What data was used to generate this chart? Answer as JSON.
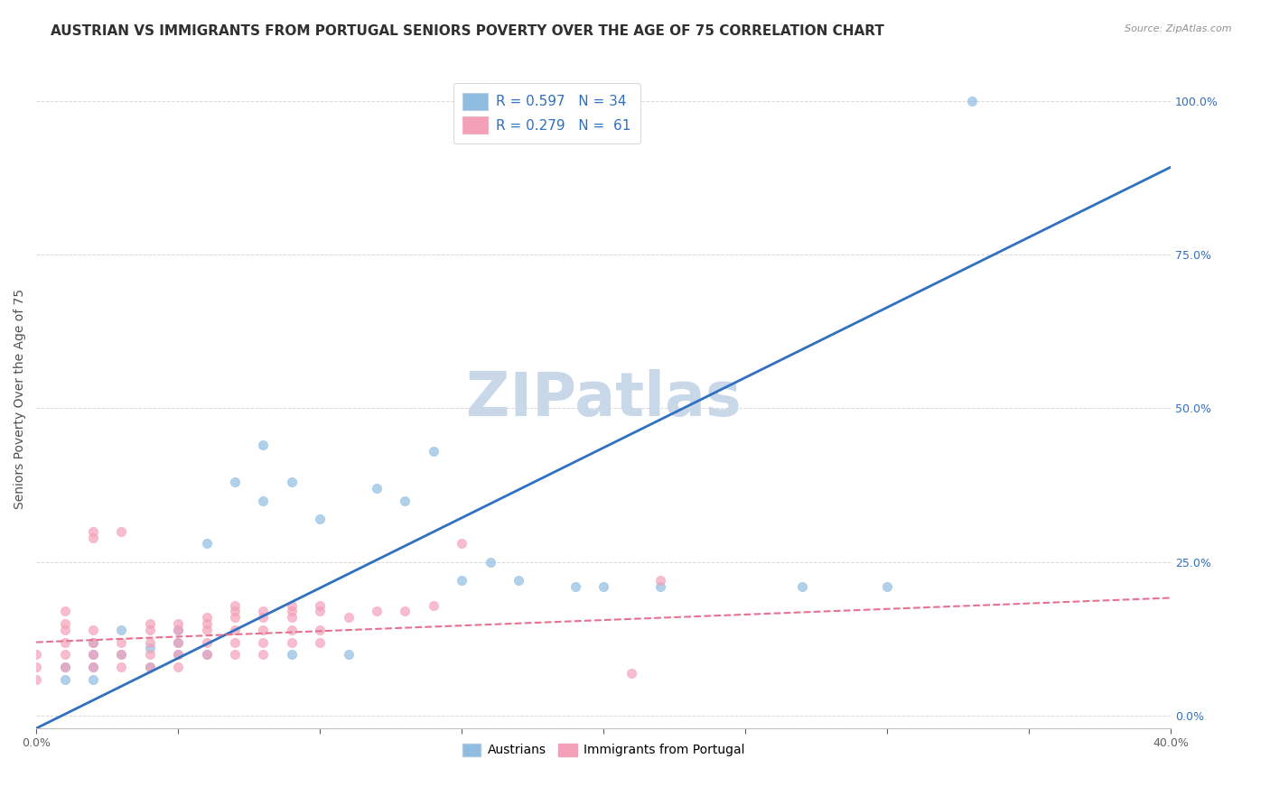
{
  "title": "AUSTRIAN VS IMMIGRANTS FROM PORTUGAL SENIORS POVERTY OVER THE AGE OF 75 CORRELATION CHART",
  "source": "Source: ZipAtlas.com",
  "ylabel": "Seniors Poverty Over the Age of 75",
  "xlim": [
    0.0,
    0.4
  ],
  "ylim": [
    -0.02,
    1.05
  ],
  "yticks": [
    0.0,
    0.25,
    0.5,
    0.75,
    1.0
  ],
  "ytick_labels": [
    "0.0%",
    "25.0%",
    "50.0%",
    "75.0%",
    "100.0%"
  ],
  "xticks": [
    0.0,
    0.05,
    0.1,
    0.15,
    0.2,
    0.25,
    0.3,
    0.35,
    0.4
  ],
  "legend_entries": [
    {
      "label": "R = 0.597   N = 34",
      "color": "#a8c8e8"
    },
    {
      "label": "R = 0.279   N =  61",
      "color": "#f4b8c8"
    }
  ],
  "legend_labels_bottom": [
    "Austrians",
    "Immigrants from Portugal"
  ],
  "watermark": "ZIPatlas",
  "title_color": "#2060a0",
  "source_color": "#909090",
  "austrians_color": "#90bce0",
  "immigrants_color": "#f4a0b8",
  "regression_austrians_color": "#3070c0",
  "regression_immigrants_color": "#e87090",
  "austrians_x": [
    0.01,
    0.01,
    0.02,
    0.02,
    0.02,
    0.02,
    0.03,
    0.03,
    0.04,
    0.04,
    0.05,
    0.05,
    0.05,
    0.06,
    0.06,
    0.07,
    0.08,
    0.08,
    0.09,
    0.09,
    0.1,
    0.11,
    0.12,
    0.13,
    0.14,
    0.15,
    0.16,
    0.17,
    0.19,
    0.2,
    0.22,
    0.27,
    0.3,
    0.33
  ],
  "austrians_y": [
    0.06,
    0.08,
    0.06,
    0.08,
    0.1,
    0.12,
    0.1,
    0.14,
    0.08,
    0.11,
    0.1,
    0.12,
    0.14,
    0.28,
    0.1,
    0.38,
    0.44,
    0.35,
    0.1,
    0.38,
    0.32,
    0.1,
    0.37,
    0.35,
    0.43,
    0.22,
    0.25,
    0.22,
    0.21,
    0.21,
    0.21,
    0.21,
    0.21,
    1.0
  ],
  "immigrants_x": [
    0.0,
    0.0,
    0.0,
    0.01,
    0.01,
    0.01,
    0.01,
    0.01,
    0.01,
    0.02,
    0.02,
    0.02,
    0.02,
    0.02,
    0.02,
    0.03,
    0.03,
    0.03,
    0.03,
    0.04,
    0.04,
    0.04,
    0.04,
    0.04,
    0.05,
    0.05,
    0.05,
    0.05,
    0.05,
    0.06,
    0.06,
    0.06,
    0.06,
    0.06,
    0.07,
    0.07,
    0.07,
    0.07,
    0.07,
    0.07,
    0.08,
    0.08,
    0.08,
    0.08,
    0.08,
    0.09,
    0.09,
    0.09,
    0.09,
    0.09,
    0.1,
    0.1,
    0.1,
    0.1,
    0.11,
    0.12,
    0.13,
    0.14,
    0.15,
    0.21,
    0.22
  ],
  "immigrants_y": [
    0.06,
    0.08,
    0.1,
    0.08,
    0.1,
    0.12,
    0.14,
    0.15,
    0.17,
    0.08,
    0.1,
    0.12,
    0.14,
    0.29,
    0.3,
    0.08,
    0.1,
    0.12,
    0.3,
    0.08,
    0.1,
    0.12,
    0.14,
    0.15,
    0.08,
    0.1,
    0.12,
    0.14,
    0.15,
    0.1,
    0.12,
    0.14,
    0.15,
    0.16,
    0.1,
    0.12,
    0.14,
    0.16,
    0.17,
    0.18,
    0.1,
    0.12,
    0.14,
    0.16,
    0.17,
    0.12,
    0.14,
    0.16,
    0.17,
    0.18,
    0.12,
    0.14,
    0.17,
    0.18,
    0.16,
    0.17,
    0.17,
    0.18,
    0.28,
    0.07,
    0.22
  ],
  "title_fontsize": 11,
  "axis_fontsize": 10,
  "tick_fontsize": 9,
  "marker_size": 55,
  "background_color": "#ffffff",
  "grid_color": "#d0d0d0",
  "watermark_color": "#c8d8e8",
  "watermark_fontsize": 48,
  "regression_slope_au": 2.28,
  "regression_intercept_au": -0.02,
  "regression_slope_im": 0.18,
  "regression_intercept_im": 0.12
}
